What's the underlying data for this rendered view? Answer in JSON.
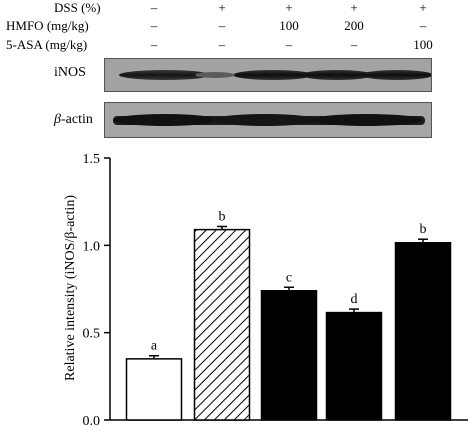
{
  "treatments": {
    "rows": [
      {
        "label": "DSS (%)",
        "values": [
          "–",
          "+",
          "+",
          "+",
          "+"
        ]
      },
      {
        "label": "HMFO (mg/kg)",
        "values": [
          "–",
          "–",
          "100",
          "200",
          "–"
        ]
      },
      {
        "label": "5-ASA (mg/kg)",
        "values": [
          "–",
          "–",
          "–",
          "–",
          "100"
        ]
      }
    ]
  },
  "blots": {
    "inos_label": "iNOS",
    "actin_label_greek": "β",
    "actin_label_rest": "-actin"
  },
  "chart_data": {
    "type": "bar",
    "categories": [
      "",
      "",
      "",
      "",
      ""
    ],
    "values": [
      0.35,
      1.09,
      0.74,
      0.615,
      1.015
    ],
    "errors": [
      0.018,
      0.018,
      0.02,
      0.02,
      0.02
    ],
    "letters": [
      "a",
      "b",
      "c",
      "d",
      "b"
    ],
    "fills": [
      "white",
      "hatched",
      "black",
      "black",
      "black"
    ],
    "ylabel": "Relative intensity (iNOS/β-actin)",
    "ylim": [
      0.0,
      1.5
    ],
    "yticks": [
      0.0,
      0.5,
      1.0,
      1.5
    ],
    "ytick_labels": [
      "0.0",
      "0.5",
      "1.0",
      "1.5"
    ],
    "grid": false
  }
}
